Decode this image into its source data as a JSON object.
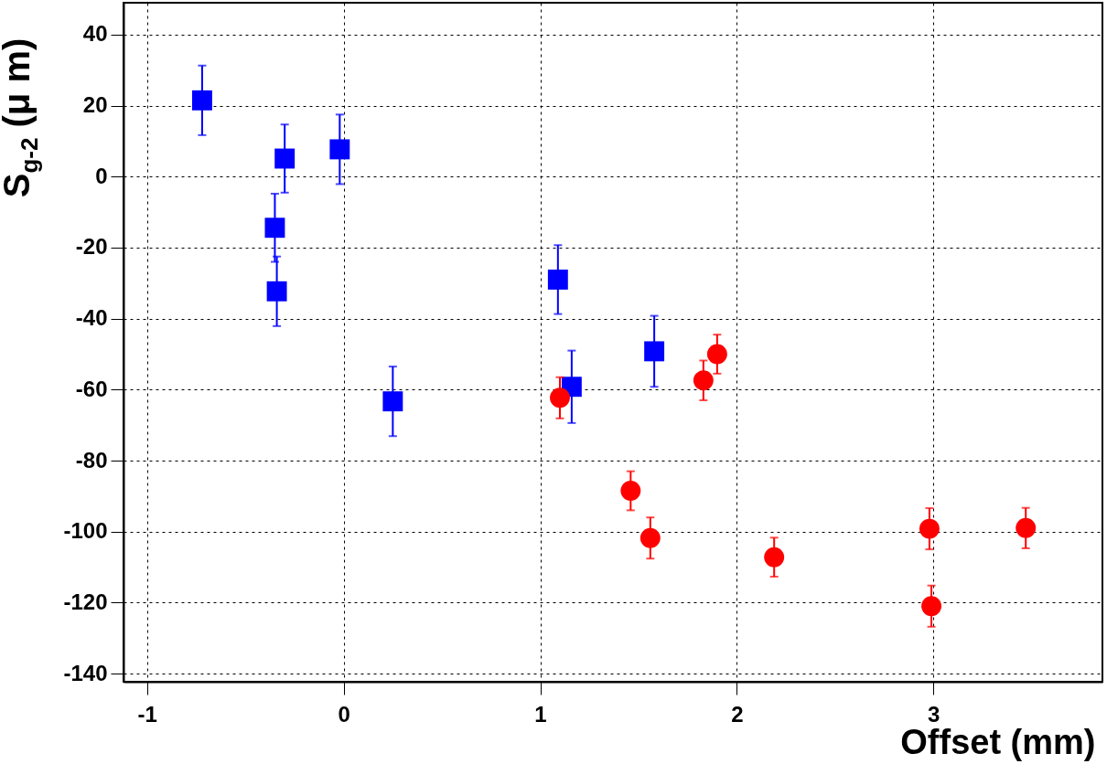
{
  "chart_data": {
    "type": "scatter",
    "xlabel": "Offset (mm)",
    "ylabel": "S$_{g-2}$ (μ m)",
    "xlim": [
      -1.12,
      3.86
    ],
    "ylim": [
      -142.3,
      49
    ],
    "xticks": [
      -1,
      0,
      1,
      2,
      3
    ],
    "yticks": [
      -140,
      -120,
      -100,
      -80,
      -60,
      -40,
      -20,
      0,
      20,
      40
    ],
    "grid": true,
    "series": [
      {
        "color": "#0000ff",
        "marker": "square",
        "x": [
          -0.72,
          -0.3,
          -0.35,
          -0.34,
          -0.02,
          0.25,
          1.09,
          1.16,
          1.58
        ],
        "values": [
          21.5,
          5.1,
          -14.4,
          -32.3,
          7.7,
          -63.3,
          -29,
          -59.2,
          -49.2
        ],
        "errors": [
          9.8,
          9.6,
          9.6,
          9.8,
          9.8,
          9.8,
          9.7,
          10.2,
          10
        ]
      },
      {
        "color": "#ff0000",
        "marker": "circle",
        "x": [
          1.1,
          1.46,
          1.56,
          1.83,
          1.9,
          2.19,
          2.98,
          2.99,
          3.47
        ],
        "values": [
          -62.3,
          -88.5,
          -101.8,
          -57.4,
          -50,
          -107.2,
          -99.2,
          -121,
          -99
        ],
        "errors": [
          5.8,
          5.5,
          5.8,
          5.6,
          5.5,
          5.5,
          5.8,
          5.8,
          5.7
        ]
      }
    ]
  }
}
